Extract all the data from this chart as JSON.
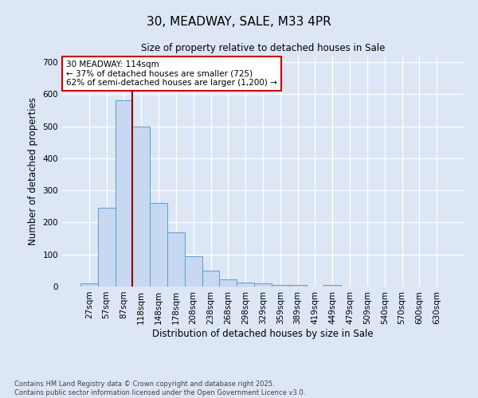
{
  "title_line1": "30, MEADWAY, SALE, M33 4PR",
  "title_line2": "Size of property relative to detached houses in Sale",
  "xlabel": "Distribution of detached houses by size in Sale",
  "ylabel": "Number of detached properties",
  "categories": [
    "27sqm",
    "57sqm",
    "87sqm",
    "118sqm",
    "148sqm",
    "178sqm",
    "208sqm",
    "238sqm",
    "268sqm",
    "298sqm",
    "329sqm",
    "359sqm",
    "389sqm",
    "419sqm",
    "449sqm",
    "479sqm",
    "509sqm",
    "540sqm",
    "570sqm",
    "600sqm",
    "630sqm"
  ],
  "values": [
    10,
    245,
    580,
    500,
    260,
    170,
    95,
    50,
    22,
    13,
    10,
    5,
    4,
    0,
    5,
    0,
    0,
    0,
    0,
    0,
    0
  ],
  "bar_color": "#c6d9f0",
  "bar_edge_color": "#5b9bd5",
  "vline_color": "#8b0000",
  "annotation_text": "30 MEADWAY: 114sqm\n← 37% of detached houses are smaller (725)\n62% of semi-detached houses are larger (1,200) →",
  "annotation_box_color": "#ffffff",
  "annotation_box_edge_color": "#cc0000",
  "ylim": [
    0,
    720
  ],
  "yticks": [
    0,
    100,
    200,
    300,
    400,
    500,
    600,
    700
  ],
  "footer_line1": "Contains HM Land Registry data © Crown copyright and database right 2025.",
  "footer_line2": "Contains public sector information licensed under the Open Government Licence v3.0.",
  "bg_color": "#dce6f5",
  "plot_bg_color": "#dce6f5",
  "grid_color": "#ffffff"
}
